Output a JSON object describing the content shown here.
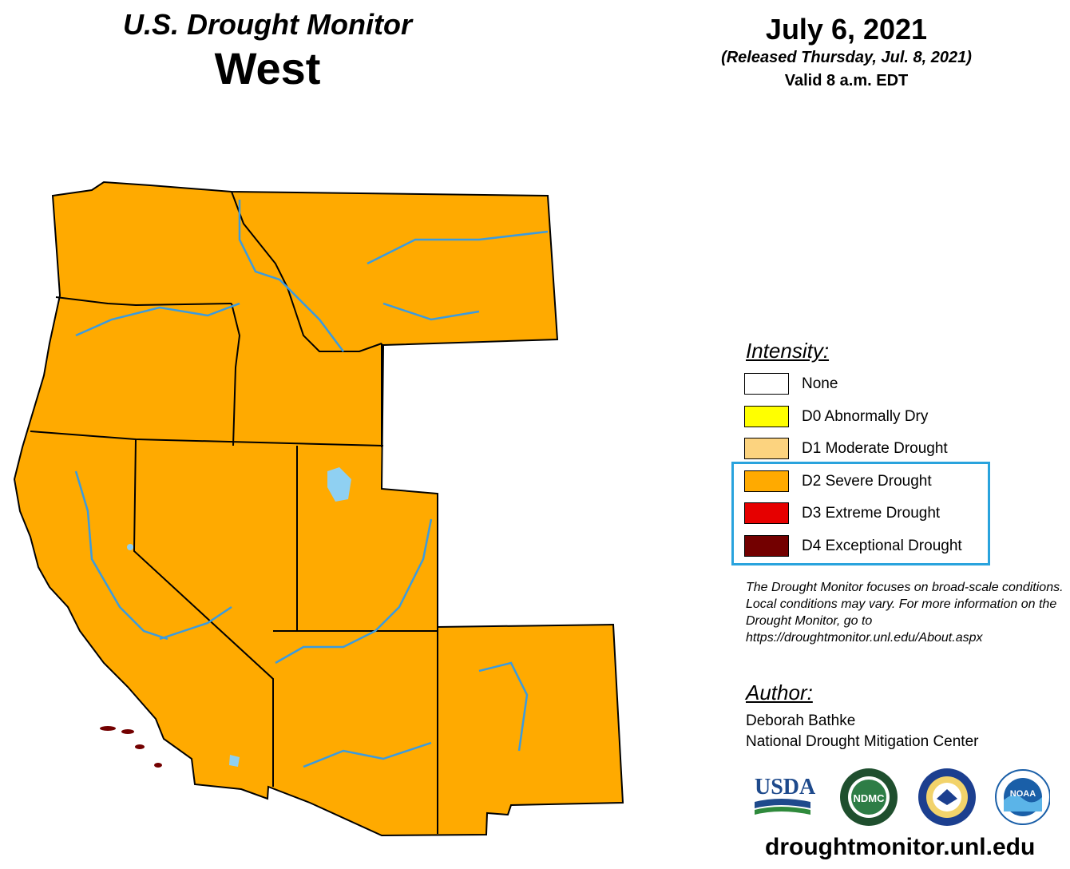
{
  "header": {
    "title": "U.S. Drought Monitor",
    "region": "West",
    "date": "July 6, 2021",
    "released": "(Released Thursday, Jul. 8, 2021)",
    "valid": "Valid 8 a.m. EDT"
  },
  "legend": {
    "title": "Intensity:",
    "items": [
      {
        "label": "None",
        "color": "#ffffff"
      },
      {
        "label": "D0 Abnormally Dry",
        "color": "#ffff00"
      },
      {
        "label": "D1 Moderate Drought",
        "color": "#fcd37f"
      },
      {
        "label": "D2 Severe Drought",
        "color": "#ffaa00"
      },
      {
        "label": "D3 Extreme Drought",
        "color": "#e60000"
      },
      {
        "label": "D4 Exceptional Drought",
        "color": "#730000"
      }
    ],
    "highlight_color": "#29a3dd"
  },
  "disclaimer": "The Drought Monitor focuses on broad-scale conditions. Local conditions may vary. For more information on the Drought Monitor, go to https://droughtmonitor.unl.edu/About.aspx",
  "author": {
    "title": "Author:",
    "name": "Deborah Bathke",
    "organization": "National Drought Mitigation Center"
  },
  "logos": {
    "usda": "USDA",
    "ndmc": "NDMC",
    "commerce": "commerce-seal-icon",
    "noaa": "NOAA"
  },
  "footer_url": "droughtmonitor.unl.edu",
  "map_colors": {
    "river": "#3a9be0",
    "lake": "#8fd0f2",
    "border": "#000000",
    "county": "#6e4a1a"
  }
}
